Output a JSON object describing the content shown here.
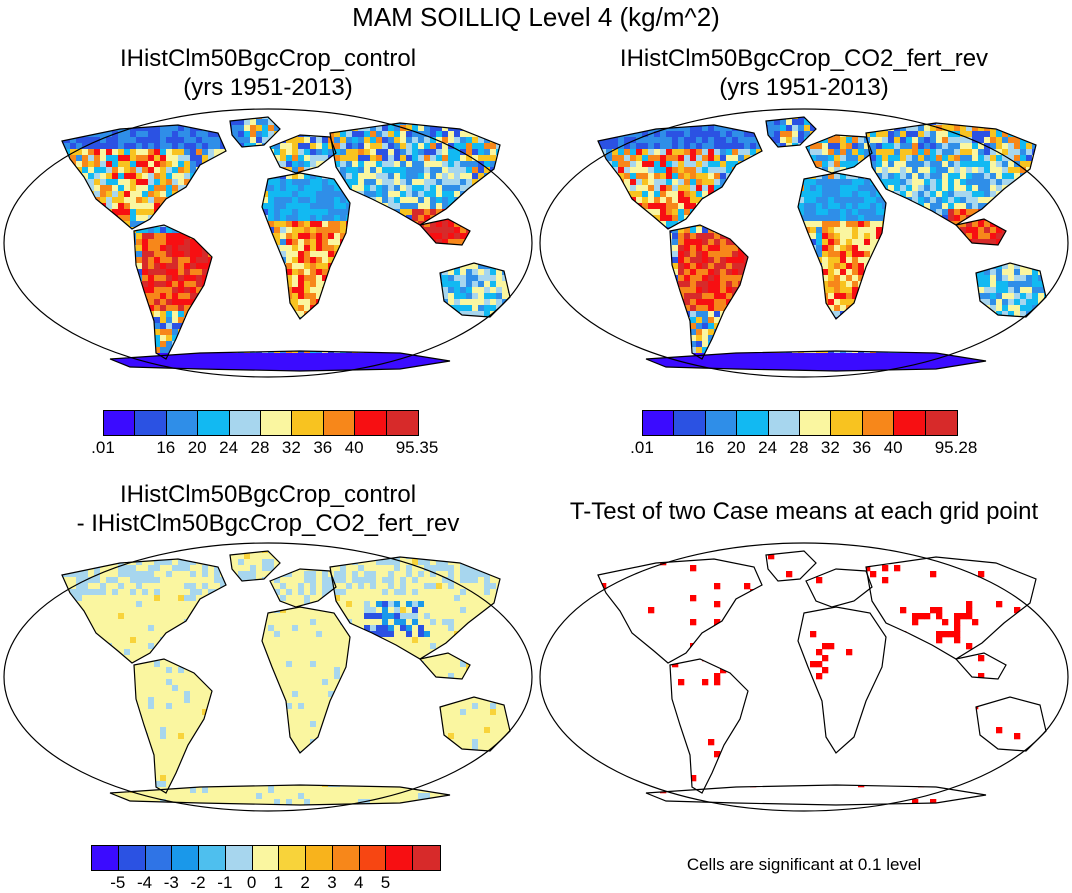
{
  "title": "MAM SOILLIQ Level 4 (kg/m^2)",
  "panels": [
    {
      "title1": "IHistClm50BgcCrop_control",
      "title2": "(yrs 1951-2013)"
    },
    {
      "title1": "IHistClm50BgcCrop_CO2_fert_rev",
      "title2": "(yrs 1951-2013)"
    },
    {
      "title1": "IHistClm50BgcCrop_control",
      "title2": "- IHistClm50BgcCrop_CO2_fert_rev"
    },
    {
      "title1": "T-Test of two Case means at each grid point",
      "title2": ""
    }
  ],
  "colorbars": {
    "abs_colors": [
      "#3b0bff",
      "#2b52e3",
      "#2f8ee8",
      "#12b9f2",
      "#a7d6ee",
      "#faf6a0",
      "#f8c320",
      "#f7871a",
      "#f70f12",
      "#d72a2a"
    ],
    "abs_left_labels": [
      ".01",
      "",
      "16",
      "20",
      "24",
      "28",
      "32",
      "36",
      "40",
      "",
      "95.35"
    ],
    "abs_right_labels": [
      ".01",
      "",
      "16",
      "20",
      "24",
      "28",
      "32",
      "36",
      "40",
      "",
      "95.28"
    ],
    "diff_colors": [
      "#3b0bff",
      "#2b52e3",
      "#2f74e6",
      "#1a98ea",
      "#4ebfee",
      "#a7d6ee",
      "#faf6a0",
      "#f8d33a",
      "#f8b31c",
      "#f7871a",
      "#f74612",
      "#f70f12",
      "#d72a2a"
    ],
    "diff_labels": [
      "-5",
      "-4",
      "-3",
      "-2",
      "-1",
      "0",
      "1",
      "2",
      "3",
      "4",
      "5"
    ]
  },
  "significance_note": "Cells are significant at 0.1 level",
  "significance_color": "#ff0000"
}
